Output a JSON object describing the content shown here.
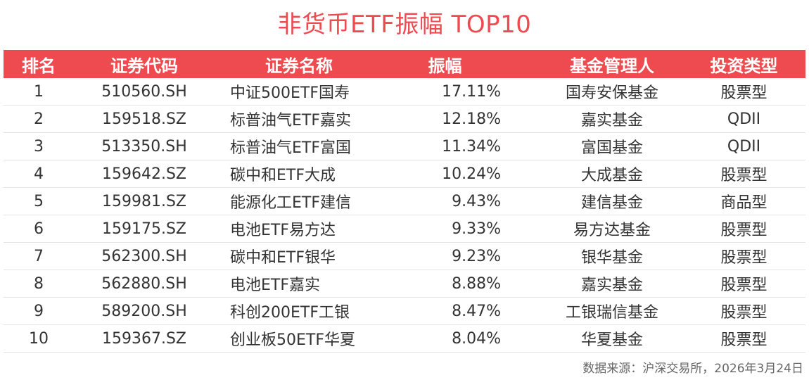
{
  "title": "非货币ETF振幅 TOP10",
  "table": {
    "headers": {
      "rank": "排名",
      "code": "证券代码",
      "name": "证券名称",
      "amplitude": "振幅",
      "manager": "基金管理人",
      "type": "投资类型"
    },
    "rows": [
      {
        "rank": "1",
        "code": "510560.SH",
        "name": "中证500ETF国寿",
        "amplitude": "17.11%",
        "manager": "国寿安保基金",
        "type": "股票型"
      },
      {
        "rank": "2",
        "code": "159518.SZ",
        "name": "标普油气ETF嘉实",
        "amplitude": "12.18%",
        "manager": "嘉实基金",
        "type": "QDII"
      },
      {
        "rank": "3",
        "code": "513350.SH",
        "name": "标普油气ETF富国",
        "amplitude": "11.34%",
        "manager": "富国基金",
        "type": "QDII"
      },
      {
        "rank": "4",
        "code": "159642.SZ",
        "name": "碳中和ETF大成",
        "amplitude": "10.24%",
        "manager": "大成基金",
        "type": "股票型"
      },
      {
        "rank": "5",
        "code": "159981.SZ",
        "name": "能源化工ETF建信",
        "amplitude": "9.43%",
        "manager": "建信基金",
        "type": "商品型"
      },
      {
        "rank": "6",
        "code": "159175.SZ",
        "name": "电池ETF易方达",
        "amplitude": "9.33%",
        "manager": "易方达基金",
        "type": "股票型"
      },
      {
        "rank": "7",
        "code": "562300.SH",
        "name": "碳中和ETF银华",
        "amplitude": "9.23%",
        "manager": "银华基金",
        "type": "股票型"
      },
      {
        "rank": "8",
        "code": "562880.SH",
        "name": "电池ETF嘉实",
        "amplitude": "8.88%",
        "manager": "嘉实基金",
        "type": "股票型"
      },
      {
        "rank": "9",
        "code": "589200.SH",
        "name": "科创200ETF工银",
        "amplitude": "8.47%",
        "manager": "工银瑞信基金",
        "type": "股票型"
      },
      {
        "rank": "10",
        "code": "159367.SZ",
        "name": "创业板50ETF华夏",
        "amplitude": "8.04%",
        "manager": "华夏基金",
        "type": "股票型"
      }
    ]
  },
  "source": "数据来源：沪深交易所，2026年3月24日",
  "colors": {
    "accent": "#ee4b51",
    "header_text": "#ffffff",
    "body_text": "#333333",
    "divider": "#e4e4e4"
  }
}
